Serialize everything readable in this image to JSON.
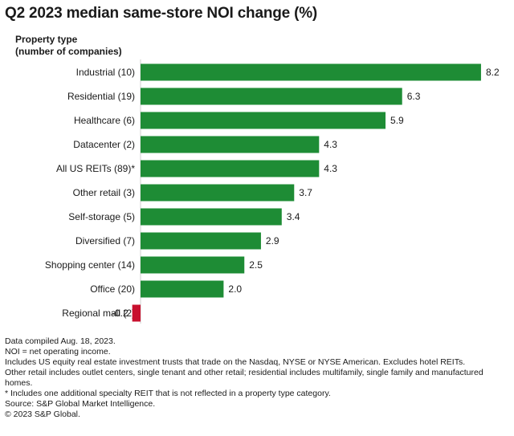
{
  "chart_data": {
    "type": "bar",
    "orientation": "horizontal",
    "title": "Q2 2023 median same-store NOI change (%)",
    "ylabel_line1": "Property type",
    "ylabel_line2": "(number of companies)",
    "categories": [
      "Industrial (10)",
      "Residential (19)",
      "Healthcare (6)",
      "Datacenter (2)",
      "All US REITs (89)*",
      "Other retail (3)",
      "Self-storage (5)",
      "Diversified (7)",
      "Shopping center (14)",
      "Office (20)",
      "Regional mall (2)"
    ],
    "values": [
      8.2,
      6.3,
      5.9,
      4.3,
      4.3,
      3.7,
      3.4,
      2.9,
      2.5,
      2.0,
      -0.2
    ],
    "value_labels": [
      "8.2",
      "6.3",
      "5.9",
      "4.3",
      "4.3",
      "3.7",
      "3.4",
      "2.9",
      "2.5",
      "2.0",
      "-0.2"
    ],
    "xlim": [
      -0.2,
      8.2
    ],
    "grid": false,
    "colors": {
      "positive": "#1e8c35",
      "negative": "#c8102e",
      "axis": "#cfcfcf"
    }
  },
  "notes": [
    "Data compiled Aug. 18, 2023.",
    "NOI = net operating income.",
    "Includes US equity real estate investment trusts that trade on the Nasdaq, NYSE or NYSE American. Excludes hotel REITs.",
    "Other retail includes outlet centers, single tenant and other retail; residential includes multifamily, single family and manufactured homes.",
    "* Includes one additional specialty REIT that is not reflected in a property type category.",
    "Source: S&P Global Market Intelligence.",
    "© 2023 S&P Global."
  ]
}
